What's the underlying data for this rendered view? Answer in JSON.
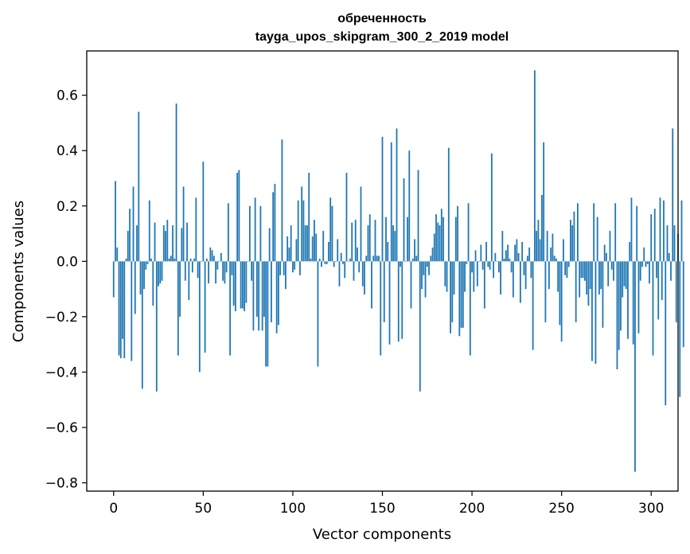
{
  "chart_data": {
    "type": "bar",
    "title": "обреченность",
    "subtitle": "tayga_upos_skipgram_300_2_2019 model",
    "xlabel": "Vector components",
    "ylabel": "Components values",
    "xlim": [
      -15,
      315
    ],
    "ylim": [
      -0.83,
      0.76
    ],
    "xticks": [
      0,
      50,
      100,
      150,
      200,
      250,
      300
    ],
    "yticks": [
      -0.8,
      -0.6,
      -0.4,
      -0.2,
      0.0,
      0.2,
      0.4,
      0.6
    ],
    "ytick_labels": [
      "−0.8",
      "−0.6",
      "−0.4",
      "−0.2",
      "0.0",
      "0.2",
      "0.4",
      "0.6"
    ],
    "grid": false,
    "bar_color": "#1f77b4",
    "values": [
      -0.13,
      0.29,
      0.05,
      -0.34,
      -0.35,
      -0.28,
      -0.35,
      0.01,
      0.11,
      0.19,
      -0.36,
      0.27,
      -0.19,
      0.13,
      0.54,
      -0.12,
      -0.46,
      -0.1,
      -0.03,
      -0.01,
      0.22,
      0.01,
      -0.16,
      0.14,
      -0.47,
      -0.09,
      -0.08,
      -0.07,
      0.13,
      0.11,
      0.15,
      0.01,
      0.02,
      0.13,
      0.01,
      0.57,
      -0.34,
      -0.2,
      0.12,
      0.27,
      -0.07,
      0.14,
      -0.14,
      0.01,
      -0.04,
      0.01,
      0.23,
      -0.06,
      -0.4,
      0.0,
      0.36,
      -0.33,
      0.01,
      -0.08,
      0.05,
      0.04,
      0.02,
      -0.08,
      -0.03,
      0.0,
      0.03,
      -0.07,
      -0.08,
      -0.04,
      0.21,
      -0.34,
      -0.05,
      -0.16,
      -0.18,
      0.32,
      0.33,
      -0.17,
      -0.17,
      -0.18,
      -0.15,
      0.0,
      0.2,
      -0.07,
      -0.25,
      0.23,
      -0.2,
      -0.25,
      0.2,
      -0.25,
      -0.2,
      -0.38,
      -0.38,
      0.12,
      -0.22,
      0.25,
      0.28,
      -0.26,
      -0.23,
      -0.05,
      0.44,
      -0.05,
      -0.1,
      0.09,
      0.05,
      0.13,
      -0.04,
      -0.03,
      0.08,
      0.22,
      -0.05,
      0.27,
      0.22,
      0.13,
      0.13,
      0.32,
      0.01,
      0.09,
      0.15,
      0.1,
      -0.38,
      0.01,
      -0.02,
      0.11,
      -0.01,
      -0.01,
      0.07,
      0.23,
      0.2,
      -0.02,
      0.0,
      0.08,
      -0.09,
      0.03,
      -0.01,
      -0.06,
      0.32,
      0.0,
      0.01,
      0.14,
      -0.07,
      0.15,
      0.05,
      -0.04,
      0.27,
      -0.09,
      -0.12,
      0.02,
      0.13,
      0.17,
      -0.17,
      0.02,
      0.15,
      0.02,
      0.02,
      -0.34,
      0.45,
      -0.22,
      0.16,
      0.07,
      -0.3,
      0.43,
      0.13,
      0.11,
      0.48,
      -0.29,
      -0.02,
      -0.28,
      0.3,
      0.0,
      0.16,
      0.4,
      -0.17,
      0.01,
      0.08,
      0.02,
      0.33,
      -0.47,
      -0.1,
      -0.05,
      -0.13,
      -0.02,
      -0.05,
      0.02,
      0.05,
      0.1,
      0.17,
      0.14,
      0.13,
      0.19,
      0.16,
      -0.09,
      -0.11,
      0.41,
      -0.26,
      -0.22,
      -0.12,
      0.16,
      0.2,
      -0.27,
      -0.24,
      -0.24,
      -0.11,
      -0.01,
      0.21,
      -0.34,
      -0.04,
      -0.11,
      0.04,
      -0.09,
      0.0,
      0.06,
      -0.03,
      -0.17,
      0.07,
      -0.02,
      -0.03,
      0.39,
      -0.06,
      0.03,
      0.0,
      -0.04,
      -0.12,
      0.11,
      0.01,
      0.04,
      0.06,
      0.01,
      -0.04,
      -0.13,
      0.06,
      0.08,
      0.03,
      -0.15,
      0.07,
      -0.05,
      -0.1,
      0.02,
      0.05,
      -0.06,
      -0.32,
      0.69,
      0.11,
      0.15,
      0.08,
      0.24,
      0.43,
      -0.22,
      0.11,
      -0.1,
      0.05,
      0.1,
      0.02,
      0.01,
      -0.11,
      -0.23,
      -0.29,
      0.08,
      -0.05,
      -0.06,
      -0.02,
      0.15,
      0.13,
      0.18,
      -0.22,
      0.21,
      -0.13,
      -0.06,
      -0.06,
      -0.07,
      -0.12,
      -0.16,
      -0.1,
      -0.36,
      0.21,
      -0.37,
      0.16,
      -0.12,
      -0.1,
      -0.24,
      0.06,
      0.03,
      -0.09,
      0.11,
      -0.03,
      -0.07,
      0.21,
      -0.39,
      -0.32,
      -0.25,
      -0.13,
      -0.09,
      -0.1,
      -0.28,
      0.07,
      0.23,
      -0.3,
      -0.76,
      0.2,
      -0.26,
      -0.07,
      -0.02,
      0.05,
      -0.02,
      -0.01,
      -0.08,
      0.17,
      -0.34,
      0.19,
      -0.06,
      -0.21,
      0.23,
      -0.14,
      0.22,
      -0.52,
      0.13,
      0.03,
      -0.07,
      0.48,
      0.13,
      -0.22,
      0.1,
      -0.49,
      0.22,
      -0.31
    ]
  }
}
